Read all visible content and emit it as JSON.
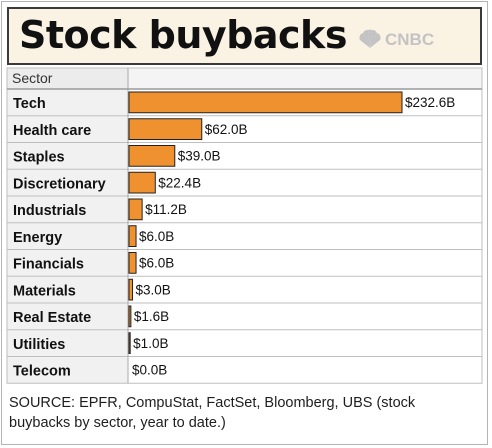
{
  "title": "Stock buybacks",
  "logo_text": "CNBC",
  "source": "SOURCE: EPFR, CompuStat, FactSet, Bloomberg, UBS (stock buybacks by sector, year to date.)",
  "chart_data": {
    "type": "bar",
    "orientation": "horizontal",
    "column_header": "Sector",
    "categories": [
      "Tech",
      "Health care",
      "Staples",
      "Discretionary",
      "Industrials",
      "Energy",
      "Financials",
      "Materials",
      "Real Estate",
      "Utilities",
      "Telecom"
    ],
    "values": [
      232.6,
      62.0,
      39.0,
      22.4,
      11.2,
      6.0,
      6.0,
      3.0,
      1.6,
      1.0,
      0.0
    ],
    "data_labels": [
      "$232.6B",
      "$62.0B",
      "$39.0B",
      "$22.4B",
      "$11.2B",
      "$6.0B",
      "$6.0B",
      "$3.0B",
      "$1.6B",
      "$1.0B",
      "$0.0B"
    ],
    "unit": "billion USD",
    "bar_color": "#f0912f",
    "grid": false,
    "legend": "none"
  }
}
